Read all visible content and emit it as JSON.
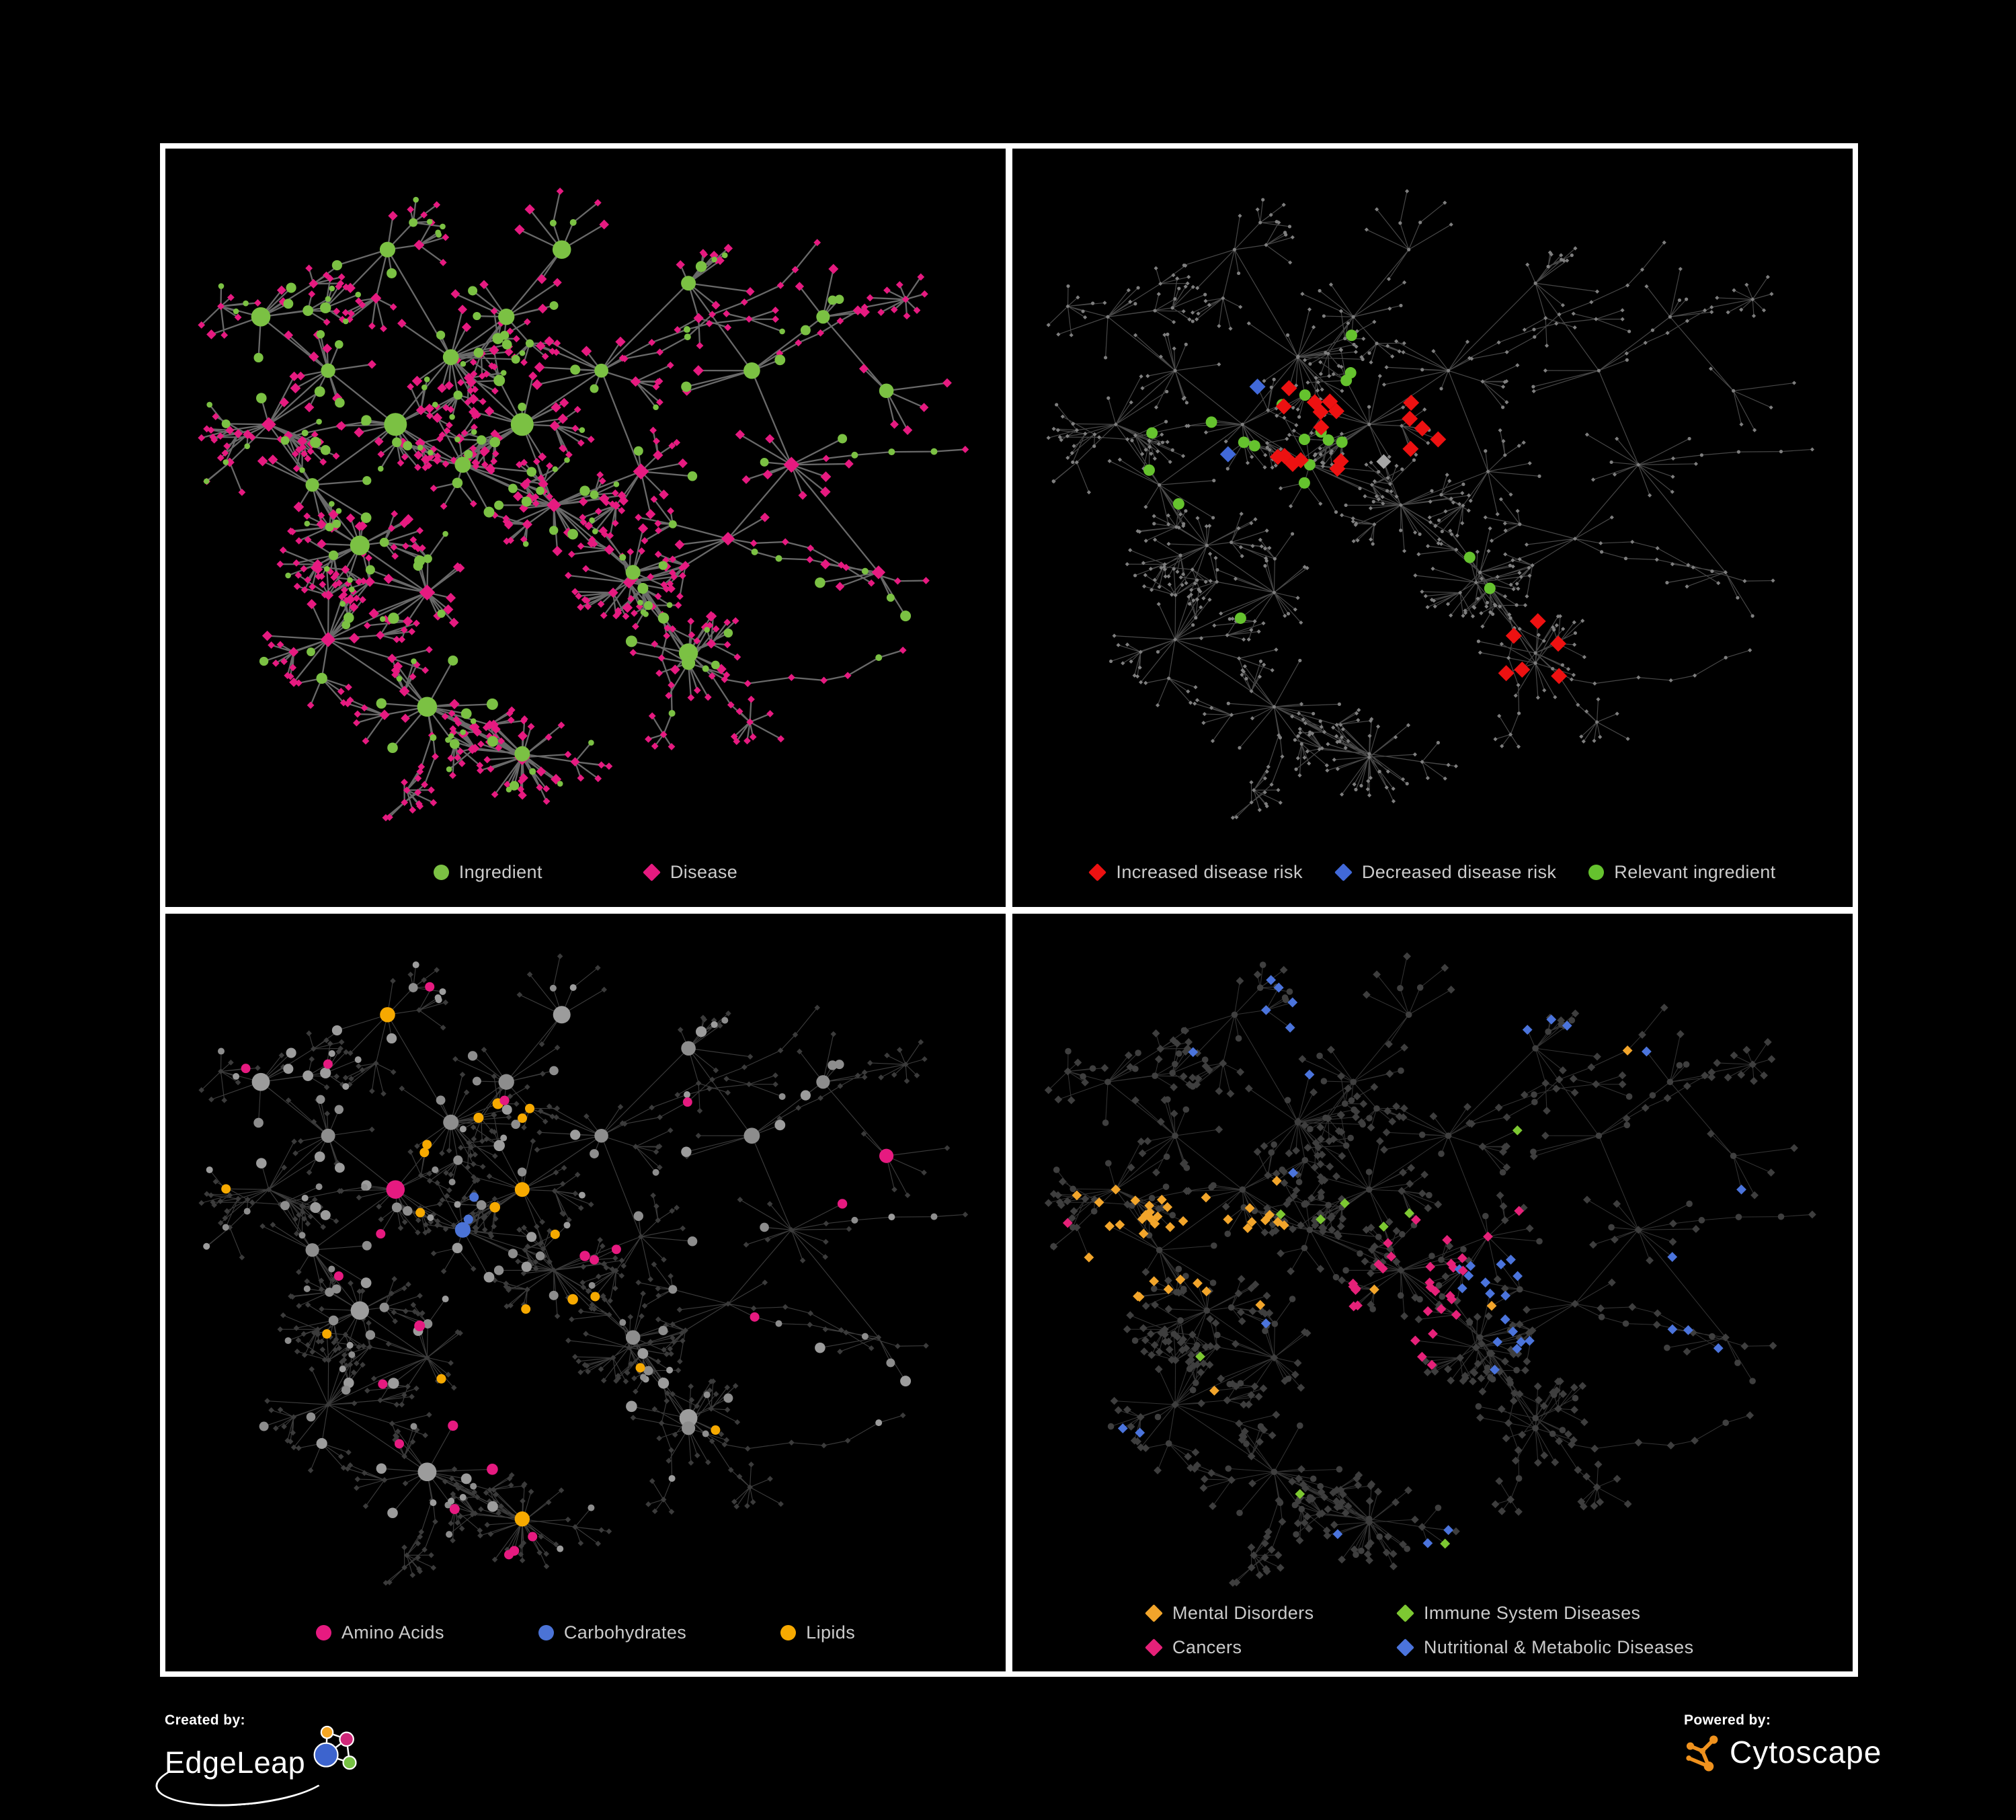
{
  "panels": [
    {
      "name": "ingredient-disease",
      "legend": [
        {
          "label": "Ingredient",
          "shape": "circle",
          "color": "#7bc143"
        },
        {
          "label": "Disease",
          "shape": "diamond",
          "color": "#e61a80"
        }
      ]
    },
    {
      "name": "disease-risk",
      "legend": [
        {
          "label": "Increased disease risk",
          "shape": "diamond",
          "color": "#ed1111"
        },
        {
          "label": "Decreased disease risk",
          "shape": "diamond",
          "color": "#4169d9"
        },
        {
          "label": "Relevant ingredient",
          "shape": "circle",
          "color": "#65c22e"
        }
      ]
    },
    {
      "name": "nutrient-classes",
      "legend": [
        {
          "label": "Amino Acids",
          "shape": "circle",
          "color": "#e61a80"
        },
        {
          "label": "Carbohydrates",
          "shape": "circle",
          "color": "#4b73d6"
        },
        {
          "label": "Lipids",
          "shape": "circle",
          "color": "#f6a900"
        }
      ]
    },
    {
      "name": "disease-classes",
      "legend": [
        {
          "label": "Mental Disorders",
          "shape": "diamond",
          "color": "#f2a52b"
        },
        {
          "label": "Immune System Diseases",
          "shape": "diamond",
          "color": "#7dc832"
        },
        {
          "label": "Cancers",
          "shape": "diamond",
          "color": "#e62179"
        },
        {
          "label": "Nutritional & Metabolic Diseases",
          "shape": "diamond",
          "color": "#4b74dc"
        }
      ]
    }
  ],
  "footer": {
    "created_by": {
      "label": "Created by:",
      "brand": "EdgeLeap"
    },
    "powered_by": {
      "label": "Powered by:",
      "brand": "Cytoscape"
    }
  },
  "colors": {
    "background": "#000000",
    "frame": "#ffffff",
    "edge_strong": "#6f6f6f",
    "edge_faint": "#9a9a9a",
    "legend_text": "#cbcbcb",
    "base_gray_node": "#8d8d8d",
    "neutral_gray_diamond": "#a6a6a6",
    "dim_diamond": "#3e3e3e",
    "edgeleap_orange": "#f5a623",
    "edgeleap_magenta": "#cf2779",
    "edgeleap_blue": "#3d64ce",
    "edgeleap_green": "#76c043",
    "cytoscape_orange": "#f0921e"
  }
}
